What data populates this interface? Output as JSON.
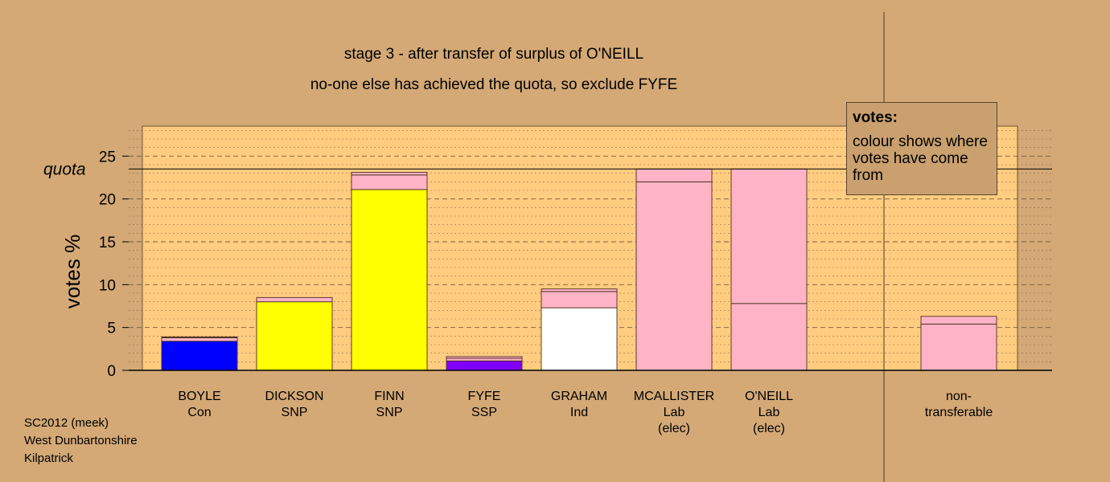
{
  "chart_data": {
    "type": "bar",
    "stacked": true,
    "title": "stage 3 - after transfer of surplus of O'NEILL",
    "subtitle": "no-one else has achieved the quota, so exclude FYFE",
    "ylabel": "votes %",
    "ylim": [
      0,
      28.5
    ],
    "yticks": [
      0,
      5,
      10,
      15,
      20,
      25
    ],
    "quota": 23.5,
    "quota_label": "quota",
    "grid": "dashed",
    "categories": [
      {
        "name": "BOYLE",
        "party": "Con",
        "note": ""
      },
      {
        "name": "DICKSON",
        "party": "SNP",
        "note": ""
      },
      {
        "name": "FINN",
        "party": "SNP",
        "note": ""
      },
      {
        "name": "FYFE",
        "party": "SSP",
        "note": ""
      },
      {
        "name": "GRAHAM",
        "party": "Ind",
        "note": ""
      },
      {
        "name": "MCALLISTER",
        "party": "Lab",
        "note": "(elec)"
      },
      {
        "name": "O'NEILL",
        "party": "Lab",
        "note": "(elec)"
      },
      {
        "name": "",
        "party": "",
        "note": ""
      },
      {
        "name": "non-",
        "party": "transferable",
        "note": ""
      }
    ],
    "bars": [
      [
        {
          "value": 3.4,
          "color": "#0000ff"
        },
        {
          "value": 0.4,
          "color": "#ffb3c6"
        },
        {
          "value": 0.1,
          "color": "#6b4c2a"
        }
      ],
      [
        {
          "value": 8.0,
          "color": "#ffff00"
        },
        {
          "value": 0.5,
          "color": "#ffb3c6"
        }
      ],
      [
        {
          "value": 21.1,
          "color": "#ffff00"
        },
        {
          "value": 1.7,
          "color": "#ffb3c6"
        },
        {
          "value": 0.3,
          "color": "#ffb3c6"
        }
      ],
      [
        {
          "value": 1.1,
          "color": "#8000ff"
        },
        {
          "value": 0.3,
          "color": "#ffb3c6"
        },
        {
          "value": 0.2,
          "color": "#ffb3c6"
        }
      ],
      [
        {
          "value": 7.3,
          "color": "#ffffff"
        },
        {
          "value": 1.9,
          "color": "#ffb3c6"
        },
        {
          "value": 0.3,
          "color": "#ffb3c6"
        }
      ],
      [
        {
          "value": 22.0,
          "color": "#ffb3c6"
        },
        {
          "value": 1.5,
          "color": "#ffb3c6"
        }
      ],
      [
        {
          "value": 7.8,
          "color": "#ffb3c6"
        },
        {
          "value": 15.7,
          "color": "#ffb3c6"
        }
      ],
      [],
      [
        {
          "value": 5.4,
          "color": "#ffb3c6"
        },
        {
          "value": 0.9,
          "color": "#ffb3c6"
        }
      ]
    ],
    "plot_background": "#ffcc80",
    "page_background": "#d4a976"
  },
  "legend": {
    "title": "votes:",
    "body": "colour shows where votes have come from"
  },
  "footer": {
    "line1": "SC2012 (meek)",
    "line2": "West Dunbartonshire",
    "line3": "Kilpatrick"
  }
}
